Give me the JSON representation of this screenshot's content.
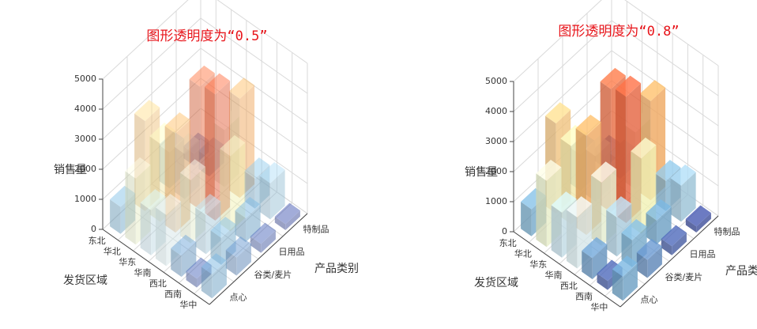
{
  "chart_data": [
    {
      "type": "bar3d",
      "title": "图形透明度为“0.5”",
      "opacity": 0.5,
      "xlabel": "产品类别",
      "ylabel": "发货区域",
      "zlabel": "销售量",
      "categories": [
        "点心",
        "谷类/麦片",
        "日用品",
        "特制品"
      ],
      "regions": [
        "东北",
        "华北",
        "华东",
        "华南",
        "西北",
        "西南",
        "华中"
      ],
      "values": [
        [
          900,
          3000,
          1200,
          400
        ],
        [
          2200,
          2600,
          1500,
          600
        ],
        [
          1500,
          3300,
          4100,
          1900
        ],
        [
          1700,
          2100,
          4200,
          3300
        ],
        [
          700,
          1300,
          2500,
          1000
        ],
        [
          300,
          900,
          800,
          1200
        ],
        [
          800,
          600,
          300,
          200
        ]
      ],
      "zlim": [
        0,
        5000
      ],
      "zticks": [
        0,
        1000,
        2000,
        3000,
        4000,
        5000
      ],
      "colormap": [
        "#313695",
        "#74add1",
        "#e0f3f8",
        "#ffffbf",
        "#fdae61",
        "#f46d43",
        "#a50026"
      ]
    },
    {
      "type": "bar3d",
      "title": "图形透明度为“0.8”",
      "opacity": 0.8,
      "xlabel": "产品类别",
      "ylabel": "发货区域",
      "zlabel": "销售量",
      "categories": [
        "点心",
        "谷类/麦片",
        "日用品",
        "特制品"
      ],
      "regions": [
        "东北",
        "华北",
        "华东",
        "华南",
        "西北",
        "西南",
        "华中"
      ],
      "values": [
        [
          900,
          3000,
          1200,
          400
        ],
        [
          2200,
          2600,
          1500,
          600
        ],
        [
          1500,
          3300,
          4100,
          1900
        ],
        [
          1700,
          2100,
          4200,
          3300
        ],
        [
          700,
          1300,
          2500,
          1000
        ],
        [
          300,
          900,
          800,
          1200
        ],
        [
          800,
          600,
          300,
          200
        ]
      ],
      "zlim": [
        0,
        5000
      ],
      "zticks": [
        0,
        1000,
        2000,
        3000,
        4000,
        5000
      ],
      "colormap": [
        "#313695",
        "#74add1",
        "#e0f3f8",
        "#ffffbf",
        "#fdae61",
        "#f46d43",
        "#a50026"
      ]
    }
  ]
}
